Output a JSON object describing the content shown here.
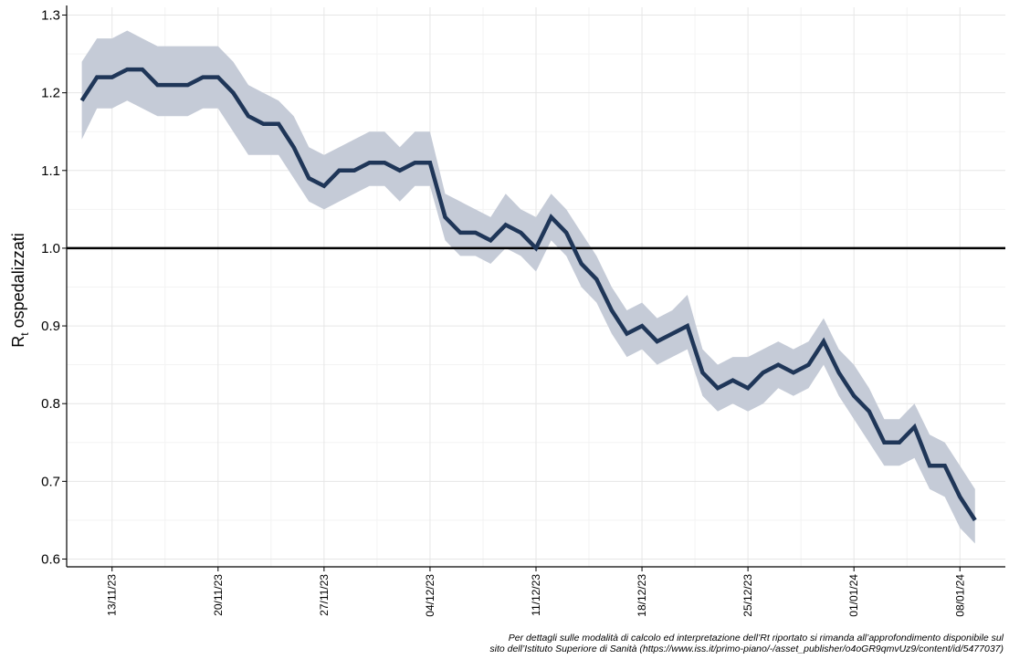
{
  "chart_data": {
    "type": "line",
    "title": "",
    "xlabel": "",
    "ylabel": "R",
    "ylabel_subscript": "t",
    "ylabel_suffix": " ospedalizzati",
    "ylim": [
      0.59,
      1.31
    ],
    "yticks": [
      0.6,
      0.7,
      0.8,
      0.9,
      1.0,
      1.1,
      1.2,
      1.3
    ],
    "ytick_labels": [
      "0.6",
      "0.7",
      "0.8",
      "0.9",
      "1.0",
      "1.1",
      "1.2",
      "1.3"
    ],
    "x_start": "2023-11-10",
    "x_end": "2024-01-11",
    "xticks": [
      "2023-11-13",
      "2023-11-20",
      "2023-11-27",
      "2023-12-04",
      "2023-12-11",
      "2023-12-18",
      "2023-12-25",
      "2024-01-01",
      "2024-01-08"
    ],
    "xtick_labels": [
      "13/11/23",
      "20/11/23",
      "27/11/23",
      "04/12/23",
      "11/12/23",
      "18/12/23",
      "25/12/23",
      "01/01/24",
      "08/01/24"
    ],
    "reference_line": 1.0,
    "grid": true,
    "line_color": "#1f3658",
    "band_color": "#c5cbd7",
    "series": [
      {
        "dates": [
          "2023-11-11",
          "2023-11-12",
          "2023-11-13",
          "2023-11-14",
          "2023-11-15",
          "2023-11-16",
          "2023-11-17",
          "2023-11-18",
          "2023-11-19",
          "2023-11-20",
          "2023-11-21",
          "2023-11-22",
          "2023-11-23",
          "2023-11-24",
          "2023-11-25",
          "2023-11-26",
          "2023-11-27",
          "2023-11-28",
          "2023-11-29",
          "2023-11-30",
          "2023-12-01",
          "2023-12-02",
          "2023-12-03",
          "2023-12-04",
          "2023-12-05",
          "2023-12-06",
          "2023-12-07",
          "2023-12-08",
          "2023-12-09",
          "2023-12-10",
          "2023-12-11",
          "2023-12-12",
          "2023-12-13",
          "2023-12-14",
          "2023-12-15",
          "2023-12-16",
          "2023-12-17",
          "2023-12-18",
          "2023-12-19",
          "2023-12-20",
          "2023-12-21",
          "2023-12-22",
          "2023-12-23",
          "2023-12-24",
          "2023-12-25",
          "2023-12-26",
          "2023-12-27",
          "2023-12-28",
          "2023-12-29",
          "2023-12-30",
          "2023-12-31",
          "2024-01-01",
          "2024-01-02",
          "2024-01-03",
          "2024-01-04",
          "2024-01-05",
          "2024-01-06",
          "2024-01-07",
          "2024-01-08",
          "2024-01-09"
        ],
        "values": [
          1.19,
          1.22,
          1.22,
          1.23,
          1.23,
          1.21,
          1.21,
          1.21,
          1.22,
          1.22,
          1.2,
          1.17,
          1.16,
          1.16,
          1.13,
          1.09,
          1.08,
          1.1,
          1.1,
          1.11,
          1.11,
          1.1,
          1.11,
          1.11,
          1.04,
          1.02,
          1.02,
          1.01,
          1.03,
          1.02,
          1.0,
          1.04,
          1.02,
          0.98,
          0.96,
          0.92,
          0.89,
          0.9,
          0.88,
          0.89,
          0.9,
          0.84,
          0.82,
          0.83,
          0.82,
          0.84,
          0.85,
          0.84,
          0.85,
          0.88,
          0.84,
          0.81,
          0.79,
          0.75,
          0.75,
          0.77,
          0.72,
          0.72,
          0.68,
          0.65
        ],
        "lower": [
          1.14,
          1.18,
          1.18,
          1.19,
          1.18,
          1.17,
          1.17,
          1.17,
          1.18,
          1.18,
          1.15,
          1.12,
          1.12,
          1.12,
          1.09,
          1.06,
          1.05,
          1.06,
          1.07,
          1.08,
          1.08,
          1.06,
          1.08,
          1.08,
          1.01,
          0.99,
          0.99,
          0.98,
          1.0,
          0.99,
          0.97,
          1.01,
          0.99,
          0.95,
          0.93,
          0.89,
          0.86,
          0.87,
          0.85,
          0.86,
          0.87,
          0.81,
          0.79,
          0.8,
          0.79,
          0.8,
          0.82,
          0.81,
          0.82,
          0.85,
          0.81,
          0.78,
          0.75,
          0.72,
          0.72,
          0.73,
          0.69,
          0.68,
          0.64,
          0.62
        ],
        "upper": [
          1.24,
          1.27,
          1.27,
          1.28,
          1.27,
          1.26,
          1.26,
          1.26,
          1.26,
          1.26,
          1.24,
          1.21,
          1.2,
          1.19,
          1.17,
          1.13,
          1.12,
          1.13,
          1.14,
          1.15,
          1.15,
          1.13,
          1.15,
          1.15,
          1.07,
          1.06,
          1.05,
          1.04,
          1.07,
          1.05,
          1.04,
          1.07,
          1.05,
          1.02,
          0.99,
          0.95,
          0.92,
          0.93,
          0.91,
          0.92,
          0.94,
          0.87,
          0.85,
          0.86,
          0.86,
          0.87,
          0.88,
          0.87,
          0.88,
          0.91,
          0.87,
          0.85,
          0.82,
          0.78,
          0.78,
          0.8,
          0.76,
          0.75,
          0.72,
          0.69
        ]
      }
    ]
  },
  "footnote": {
    "line1": "Per dettagli sulle modalità di calcolo ed interpretazione dell’Rt riportato si rimanda all’approfondimento disponibile sul",
    "line2": "sito dell’Istituto Superiore di Sanità (https://www.iss.it/primo-piano/-/asset_publisher/o4oGR9qmvUz9/content/id/5477037)"
  }
}
